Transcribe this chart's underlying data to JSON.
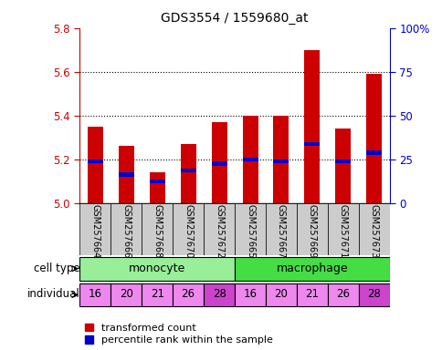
{
  "title": "GDS3554 / 1559680_at",
  "samples": [
    "GSM257664",
    "GSM257666",
    "GSM257668",
    "GSM257670",
    "GSM257672",
    "GSM257665",
    "GSM257667",
    "GSM257669",
    "GSM257671",
    "GSM257673"
  ],
  "bar_values": [
    5.35,
    5.26,
    5.14,
    5.27,
    5.37,
    5.4,
    5.4,
    5.7,
    5.34,
    5.59
  ],
  "blue_values": [
    5.19,
    5.13,
    5.1,
    5.15,
    5.18,
    5.2,
    5.19,
    5.27,
    5.19,
    5.23
  ],
  "ymin": 5.0,
  "ymax": 5.8,
  "yticks": [
    5.0,
    5.2,
    5.4,
    5.6,
    5.8
  ],
  "right_tick_labels": [
    "0",
    "25",
    "50",
    "75",
    "100%"
  ],
  "cell_type_labels": [
    "monocyte",
    "macrophage"
  ],
  "individuals": [
    "16",
    "20",
    "21",
    "26",
    "28",
    "16",
    "20",
    "21",
    "26",
    "28"
  ],
  "individual_colors": [
    "#ee88ee",
    "#ee88ee",
    "#ee88ee",
    "#ee88ee",
    "#cc44cc",
    "#ee88ee",
    "#ee88ee",
    "#ee88ee",
    "#ee88ee",
    "#cc44cc"
  ],
  "bar_color": "#cc0000",
  "blue_color": "#0000cc",
  "monocyte_color": "#99ee99",
  "macrophage_color": "#44dd44",
  "background_color": "#ffffff",
  "plot_bg_color": "#ffffff",
  "ticklabel_bg_color": "#cccccc",
  "left_axis_color": "#cc0000",
  "right_axis_color": "#0000cc",
  "legend_red": "transformed count",
  "legend_blue": "percentile rank within the sample",
  "n_samples": 10
}
